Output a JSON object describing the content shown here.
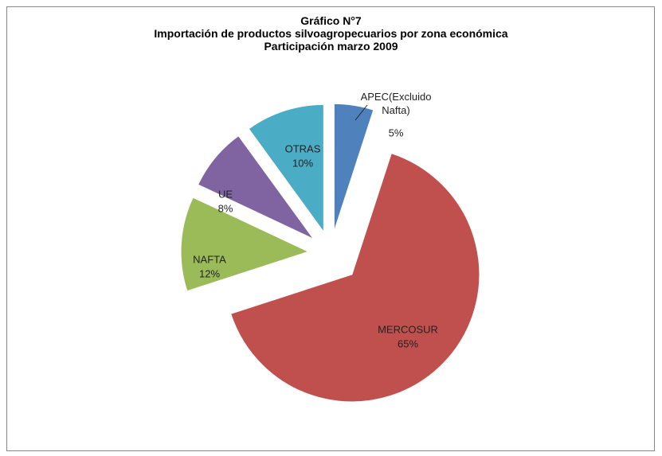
{
  "chart_data": {
    "type": "pie",
    "title": [
      "Gráfico N°7",
      "Importación de productos silvoagropecuarios  por zona económica",
      "Participación  marzo 2009"
    ],
    "categories": [
      "APEC(Excluido Nafta)",
      "MERCOSUR",
      "NAFTA",
      "UE",
      "OTRAS"
    ],
    "values": [
      5,
      65,
      12,
      8,
      10
    ],
    "value_labels": [
      "5%",
      "65%",
      "12%",
      "8%",
      "10%"
    ],
    "colors": [
      "#4f81bd",
      "#c0504d",
      "#9bbb59",
      "#8064a2",
      "#4bacc6"
    ]
  }
}
